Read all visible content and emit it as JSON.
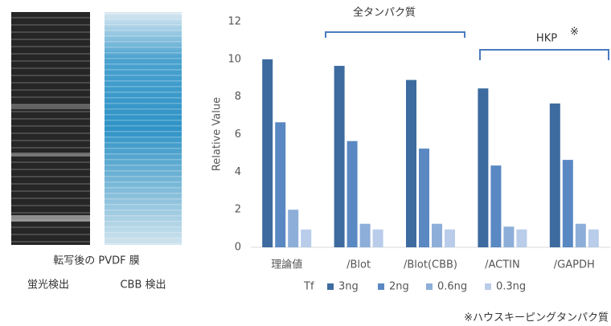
{
  "chart_data": {
    "type": "bar",
    "y_label": "Relative Value",
    "categories": [
      "理論値",
      "/Blot",
      "/Blot(CBB)",
      "/ACTIN",
      "/GAPDH"
    ],
    "legend_title": "Tf",
    "series": [
      {
        "name": "3ng",
        "color": "#3d6b9f",
        "values": [
          10,
          9.65,
          8.9,
          8.45,
          7.65
        ]
      },
      {
        "name": "2ng",
        "color": "#5a88c2",
        "values": [
          6.65,
          5.65,
          5.25,
          4.35,
          4.65
        ]
      },
      {
        "name": "0.6ng",
        "color": "#8daed9",
        "values": [
          2.0,
          1.25,
          1.25,
          1.1,
          1.25
        ]
      },
      {
        "name": "0.3ng",
        "color": "#b9cdea",
        "values": [
          0.95,
          0.95,
          0.95,
          0.95,
          0.95
        ]
      }
    ],
    "ylim": [
      0,
      12
    ],
    "yticks": [
      0,
      2,
      4,
      6,
      8,
      10,
      12
    ],
    "grid": false,
    "annotations": {
      "total_protein": "全タンパク質",
      "hkp": "HKP",
      "hkp_mark": "※",
      "footnote": "※ハウスキーピングタンパク質"
    }
  },
  "images": {
    "caption": "転写後の PVDF 膜",
    "labels": [
      "蛍光検出",
      "CBB 検出"
    ]
  }
}
